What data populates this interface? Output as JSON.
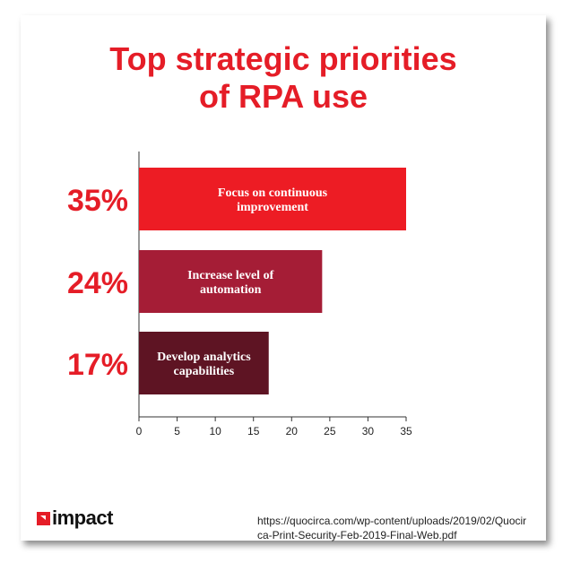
{
  "chart_data": {
    "type": "bar",
    "orientation": "horizontal",
    "title": "Top strategic priorities of RPA use",
    "title_lines": [
      "Top strategic priorities",
      "of RPA use"
    ],
    "categories": [
      "Focus on continuous improvement",
      "Increase level of automation",
      "Develop analytics capabilities"
    ],
    "label_lines": [
      [
        "Focus on continuous",
        "improvement"
      ],
      [
        "Increase level of",
        "automation"
      ],
      [
        "Develop analytics",
        "capabilities"
      ]
    ],
    "values": [
      35,
      24,
      17
    ],
    "value_labels": [
      "35%",
      "24%",
      "17%"
    ],
    "bar_colors": [
      "#ed1c24",
      "#a51d36",
      "#5e1423"
    ],
    "value_label_color": "#e51d27",
    "xlim": [
      0,
      35
    ],
    "xticks": [
      0,
      5,
      10,
      15,
      20,
      25,
      30,
      35
    ],
    "xlabel": "",
    "ylabel": "",
    "grid": false
  },
  "footer": {
    "source_line1": "https://quocirca.com/wp-content/uploads/2019/02/Quocir",
    "source_line2": "ca-Print-Security-Feb-2019-Final-Web.pdf",
    "logo_text": "impact"
  }
}
